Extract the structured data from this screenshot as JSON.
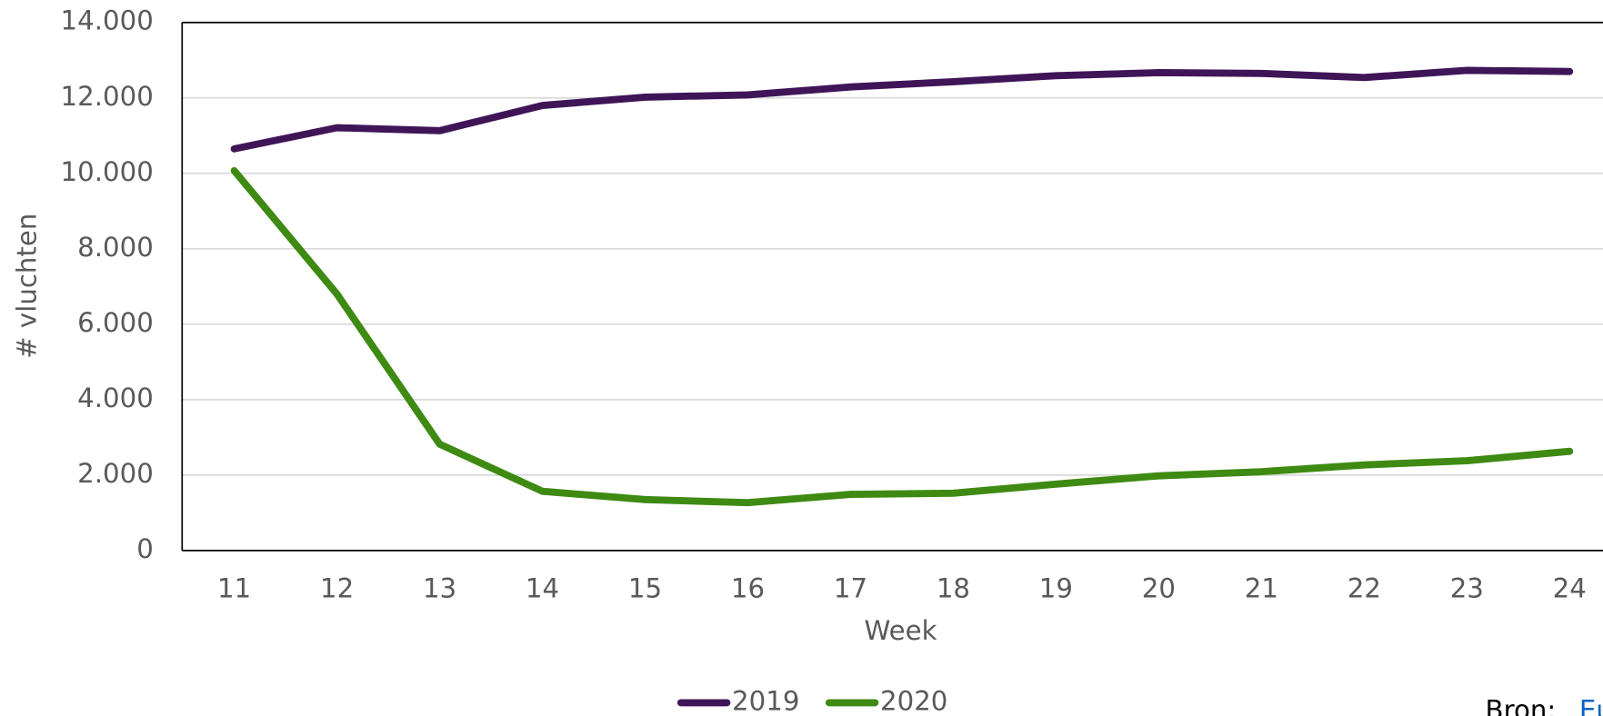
{
  "chart_data": {
    "type": "line",
    "x_label": "Week",
    "y_label": "# vluchten",
    "categories": [
      "11",
      "12",
      "13",
      "14",
      "15",
      "16",
      "17",
      "18",
      "19",
      "20",
      "21",
      "22",
      "23",
      "24"
    ],
    "series": [
      {
        "name": "2019",
        "color": "#3f1558",
        "values": [
          10650,
          11210,
          11130,
          11800,
          12020,
          12080,
          12290,
          12430,
          12590,
          12670,
          12650,
          12540,
          12730,
          12700
        ]
      },
      {
        "name": "2020",
        "color": "#3e8a12",
        "values": [
          10070,
          6800,
          2820,
          1570,
          1350,
          1270,
          1490,
          1520,
          1760,
          1980,
          2090,
          2270,
          2380,
          2630
        ]
      }
    ],
    "ylim": [
      0,
      14000
    ],
    "yticks": [
      0,
      {
        "value": 2000,
        "label": "2.000"
      },
      {
        "value": 4000,
        "label": "4.000"
      },
      {
        "value": 6000,
        "label": "6.000"
      },
      {
        "value": 8000,
        "label": "8.000"
      },
      {
        "value": 10000,
        "label": "10.000"
      },
      {
        "value": 12000,
        "label": "12.000"
      },
      {
        "value": 14000,
        "label": "14.000"
      }
    ],
    "grid": true,
    "legend": "bottom",
    "source_label": "Bron:",
    "source_link": "Eurocontrol"
  }
}
